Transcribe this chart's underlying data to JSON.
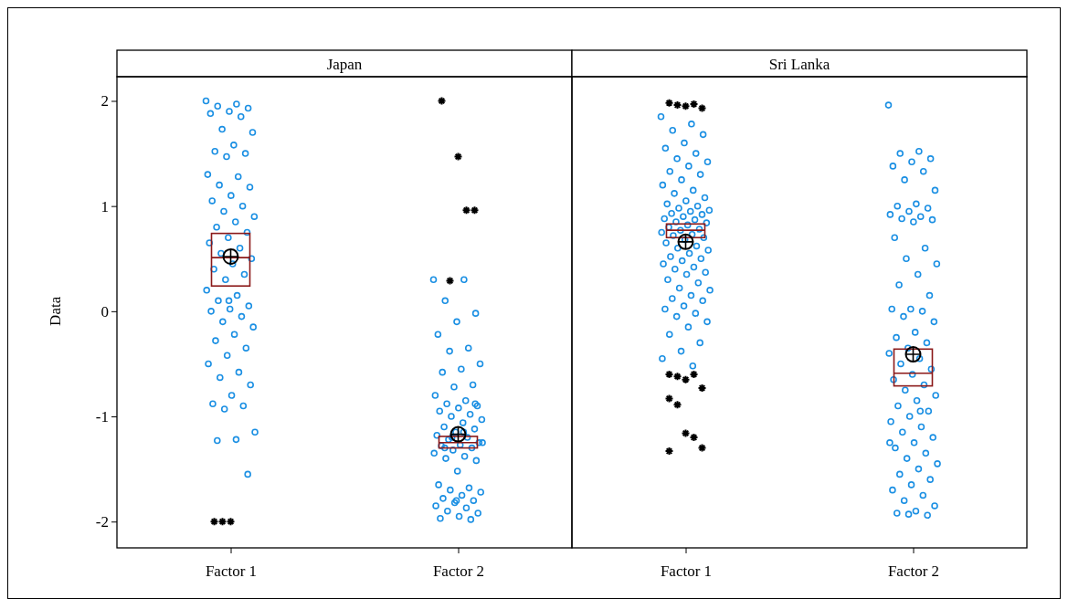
{
  "chart_data": [
    {
      "type": "box",
      "title": "Japan",
      "ylabel": "Data",
      "categories": [
        "Factor 1",
        "Factor 2"
      ],
      "ylim": [
        -2.25,
        2.23
      ],
      "yticks": [
        -2,
        -1,
        0,
        1,
        2
      ],
      "boxes": [
        {
          "q1": 0.24,
          "median": 0.51,
          "q3": 0.74,
          "mean": 0.52,
          "outliers": [
            -2,
            -2,
            -2
          ]
        },
        {
          "q1": -1.3,
          "median": -1.25,
          "q3": -1.19,
          "mean": -1.17,
          "outliers": [
            2.0,
            0.29,
            1.47,
            0.96,
            0.96
          ]
        }
      ],
      "series": [
        {
          "type": "scatter",
          "color": "#1a8fe3",
          "marker": "circle",
          "x": [
            "Factor 1",
            "Factor 1",
            "Factor 1",
            "Factor 1",
            "Factor 1",
            "Factor 1",
            "Factor 1",
            "Factor 1",
            "Factor 1",
            "Factor 1",
            "Factor 1",
            "Factor 1",
            "Factor 1",
            "Factor 1",
            "Factor 1",
            "Factor 1",
            "Factor 1",
            "Factor 1",
            "Factor 1",
            "Factor 1",
            "Factor 1",
            "Factor 1",
            "Factor 1",
            "Factor 1",
            "Factor 1",
            "Factor 1",
            "Factor 1",
            "Factor 1",
            "Factor 1",
            "Factor 1",
            "Factor 1",
            "Factor 1",
            "Factor 1",
            "Factor 1",
            "Factor 1",
            "Factor 1",
            "Factor 1",
            "Factor 1",
            "Factor 1",
            "Factor 1",
            "Factor 1",
            "Factor 1",
            "Factor 1",
            "Factor 1",
            "Factor 1",
            "Factor 1",
            "Factor 1",
            "Factor 1",
            "Factor 1",
            "Factor 1",
            "Factor 1",
            "Factor 1",
            "Factor 1",
            "Factor 1",
            "Factor 1",
            "Factor 1",
            "Factor 1",
            "Factor 1",
            "Factor 1",
            "Factor 1"
          ],
          "values": [
            2.0,
            1.97,
            1.95,
            1.93,
            1.9,
            1.88,
            1.85,
            1.73,
            1.7,
            1.58,
            1.52,
            1.5,
            1.47,
            1.3,
            1.28,
            1.2,
            1.18,
            1.1,
            1.05,
            1.0,
            0.95,
            0.9,
            0.85,
            0.8,
            0.75,
            0.7,
            0.65,
            0.6,
            0.55,
            0.5,
            0.45,
            0.4,
            0.35,
            0.3,
            0.2,
            0.15,
            0.1,
            0.05,
            0.02,
            0,
            -0.05,
            -0.1,
            -0.15,
            -0.22,
            -0.28,
            -0.35,
            -0.42,
            -0.5,
            -0.58,
            -0.63,
            -0.7,
            -0.8,
            -0.88,
            -0.9,
            -0.93,
            -1.15,
            -1.22,
            -1.23,
            -1.55,
            0.1
          ]
        },
        {
          "type": "scatter",
          "color": "#1a8fe3",
          "marker": "circle",
          "x": [
            "Factor 2",
            "Factor 2",
            "Factor 2",
            "Factor 2",
            "Factor 2",
            "Factor 2",
            "Factor 2",
            "Factor 2",
            "Factor 2",
            "Factor 2",
            "Factor 2",
            "Factor 2",
            "Factor 2",
            "Factor 2",
            "Factor 2",
            "Factor 2",
            "Factor 2",
            "Factor 2",
            "Factor 2",
            "Factor 2",
            "Factor 2",
            "Factor 2",
            "Factor 2",
            "Factor 2",
            "Factor 2",
            "Factor 2",
            "Factor 2",
            "Factor 2",
            "Factor 2",
            "Factor 2",
            "Factor 2",
            "Factor 2",
            "Factor 2",
            "Factor 2",
            "Factor 2",
            "Factor 2",
            "Factor 2",
            "Factor 2",
            "Factor 2",
            "Factor 2",
            "Factor 2",
            "Factor 2",
            "Factor 2",
            "Factor 2",
            "Factor 2",
            "Factor 2",
            "Factor 2",
            "Factor 2",
            "Factor 2",
            "Factor 2",
            "Factor 2",
            "Factor 2",
            "Factor 2",
            "Factor 2",
            "Factor 2",
            "Factor 2",
            "Factor 2",
            "Factor 2",
            "Factor 2",
            "Factor 2"
          ],
          "values": [
            0.3,
            0.3,
            0.1,
            -0.02,
            -0.1,
            -0.22,
            -0.35,
            -0.38,
            -0.5,
            -0.55,
            -0.58,
            -0.7,
            -0.72,
            -0.8,
            -0.85,
            -0.88,
            -0.9,
            -0.92,
            -0.95,
            -0.98,
            -1.0,
            -1.03,
            -1.06,
            -1.1,
            -1.12,
            -1.15,
            -1.18,
            -1.2,
            -1.22,
            -1.25,
            -1.27,
            -1.28,
            -1.3,
            -1.32,
            -1.35,
            -1.38,
            -1.4,
            -1.42,
            -1.52,
            -1.65,
            -1.68,
            -1.7,
            -1.72,
            -1.75,
            -1.78,
            -1.8,
            -1.82,
            -1.85,
            -1.87,
            -1.9,
            -1.92,
            -1.95,
            -1.97,
            -1.98,
            -1.2,
            -1.25,
            -1.15,
            -1.3,
            -0.88,
            -1.8
          ]
        }
      ]
    },
    {
      "type": "box",
      "title": "Sri Lanka",
      "categories": [
        "Factor 1",
        "Factor 2"
      ],
      "ylim": [
        -2.25,
        2.23
      ],
      "tick_labels": "x",
      "boxes": [
        {
          "q1": 0.7,
          "median": 0.77,
          "q3": 0.83,
          "mean": 0.66,
          "outliers": [
            1.98,
            1.96,
            1.95,
            1.97,
            1.93,
            -0.6,
            -0.62,
            -0.65,
            -0.6,
            -0.73,
            -0.83,
            -0.89,
            -1.16,
            -1.2,
            -1.3,
            -1.33
          ]
        },
        {
          "q1": -0.71,
          "median": -0.59,
          "q3": -0.36,
          "mean": -0.41
        }
      ],
      "series": [
        {
          "type": "scatter",
          "color": "#1a8fe3",
          "marker": "circle",
          "x": [
            "Factor 1",
            "Factor 1",
            "Factor 1",
            "Factor 1",
            "Factor 1",
            "Factor 1",
            "Factor 1",
            "Factor 1",
            "Factor 1",
            "Factor 1",
            "Factor 1",
            "Factor 1",
            "Factor 1",
            "Factor 1",
            "Factor 1",
            "Factor 1",
            "Factor 1",
            "Factor 1",
            "Factor 1",
            "Factor 1",
            "Factor 1",
            "Factor 1",
            "Factor 1",
            "Factor 1",
            "Factor 1",
            "Factor 1",
            "Factor 1",
            "Factor 1",
            "Factor 1",
            "Factor 1",
            "Factor 1",
            "Factor 1",
            "Factor 1",
            "Factor 1",
            "Factor 1",
            "Factor 1",
            "Factor 1",
            "Factor 1",
            "Factor 1",
            "Factor 1",
            "Factor 1",
            "Factor 1",
            "Factor 1",
            "Factor 1",
            "Factor 1",
            "Factor 1",
            "Factor 1",
            "Factor 1",
            "Factor 1",
            "Factor 1",
            "Factor 1",
            "Factor 1",
            "Factor 1",
            "Factor 1",
            "Factor 1",
            "Factor 1",
            "Factor 1",
            "Factor 1",
            "Factor 1",
            "Factor 1",
            "Factor 1",
            "Factor 1",
            "Factor 1",
            "Factor 1",
            "Factor 1",
            "Factor 1",
            "Factor 1",
            "Factor 1",
            "Factor 1",
            "Factor 1"
          ],
          "values": [
            1.85,
            1.78,
            1.72,
            1.68,
            1.6,
            1.55,
            1.5,
            1.45,
            1.42,
            1.38,
            1.33,
            1.3,
            1.25,
            1.2,
            1.15,
            1.12,
            1.08,
            1.05,
            1.02,
            1.0,
            0.98,
            0.96,
            0.95,
            0.93,
            0.92,
            0.9,
            0.88,
            0.87,
            0.85,
            0.84,
            0.82,
            0.8,
            0.78,
            0.77,
            0.75,
            0.73,
            0.72,
            0.7,
            0.68,
            0.65,
            0.62,
            0.6,
            0.58,
            0.55,
            0.52,
            0.5,
            0.48,
            0.45,
            0.42,
            0.4,
            0.37,
            0.35,
            0.3,
            0.27,
            0.22,
            0.2,
            0.15,
            0.12,
            0.1,
            0.05,
            0.02,
            -0.02,
            -0.05,
            -0.1,
            -0.15,
            -0.22,
            -0.3,
            -0.38,
            -0.45,
            -0.52
          ]
        },
        {
          "type": "scatter",
          "color": "#1a8fe3",
          "marker": "circle",
          "x": [
            "Factor 2",
            "Factor 2",
            "Factor 2",
            "Factor 2",
            "Factor 2",
            "Factor 2",
            "Factor 2",
            "Factor 2",
            "Factor 2",
            "Factor 2",
            "Factor 2",
            "Factor 2",
            "Factor 2",
            "Factor 2",
            "Factor 2",
            "Factor 2",
            "Factor 2",
            "Factor 2",
            "Factor 2",
            "Factor 2",
            "Factor 2",
            "Factor 2",
            "Factor 2",
            "Factor 2",
            "Factor 2",
            "Factor 2",
            "Factor 2",
            "Factor 2",
            "Factor 2",
            "Factor 2",
            "Factor 2",
            "Factor 2",
            "Factor 2",
            "Factor 2",
            "Factor 2",
            "Factor 2",
            "Factor 2",
            "Factor 2",
            "Factor 2",
            "Factor 2",
            "Factor 2",
            "Factor 2",
            "Factor 2",
            "Factor 2",
            "Factor 2",
            "Factor 2",
            "Factor 2",
            "Factor 2",
            "Factor 2",
            "Factor 2",
            "Factor 2",
            "Factor 2",
            "Factor 2",
            "Factor 2",
            "Factor 2",
            "Factor 2",
            "Factor 2",
            "Factor 2",
            "Factor 2",
            "Factor 2",
            "Factor 2",
            "Factor 2",
            "Factor 2",
            "Factor 2",
            "Factor 2",
            "Factor 2",
            "Factor 2",
            "Factor 2",
            "Factor 2",
            "Factor 2"
          ],
          "values": [
            1.96,
            1.52,
            1.5,
            1.45,
            1.42,
            1.38,
            1.33,
            1.25,
            1.15,
            1.02,
            1.0,
            0.98,
            0.95,
            0.92,
            0.9,
            0.88,
            0.87,
            0.85,
            0.7,
            0.6,
            0.5,
            0.45,
            0.35,
            0.25,
            0.15,
            0.02,
            0.02,
            0,
            -0.05,
            -0.1,
            -0.2,
            -0.25,
            -0.3,
            -0.35,
            -0.4,
            -0.45,
            -0.5,
            -0.55,
            -0.6,
            -0.65,
            -0.7,
            -0.75,
            -0.8,
            -0.85,
            -0.9,
            -0.95,
            -1.0,
            -1.05,
            -1.1,
            -1.15,
            -1.2,
            -1.25,
            -1.3,
            -1.35,
            -1.4,
            -1.45,
            -1.5,
            -1.55,
            -1.6,
            -1.65,
            -1.7,
            -1.75,
            -1.8,
            -1.85,
            -1.9,
            -1.92,
            -1.94,
            -1.93,
            -1.25,
            -0.95
          ]
        }
      ]
    }
  ]
}
